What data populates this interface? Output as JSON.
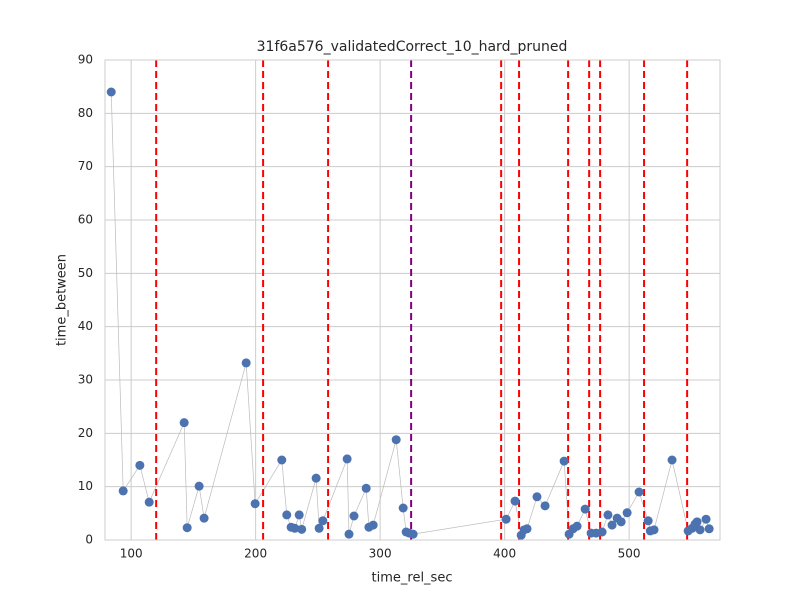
{
  "chart_data": {
    "type": "scatter",
    "title": "31f6a576_validatedCorrect_10_hard_pruned",
    "x_label": "time_rel_sec",
    "y_label": "time_between",
    "color": "#4c72b0",
    "line_color": "#bbbbbb",
    "grid": true,
    "x": [
      84,
      93.6,
      107,
      114.5,
      142.6,
      145,
      154.6,
      158.6,
      192.4,
      199.6,
      221,
      225,
      228.5,
      231.5,
      235,
      237,
      248.6,
      251,
      254,
      273.5,
      275,
      279,
      288.8,
      291,
      294.4,
      312.9,
      318.5,
      320.9,
      323.3,
      326.5,
      401.2,
      408.4,
      413.3,
      415.7,
      418,
      426,
      432.5,
      447.8,
      451.8,
      455,
      458.2,
      464.7,
      469.5,
      473.5,
      478.3,
      483,
      486.3,
      490.4,
      493.6,
      498.4,
      508,
      515.3,
      517,
      520,
      534.5,
      547.4,
      550.6,
      553,
      554.6,
      557,
      561.8,
      564.3
    ],
    "values": [
      84,
      9.2,
      14,
      7.1,
      22,
      2.3,
      10.1,
      4.1,
      33.2,
      6.8,
      15,
      4.7,
      2.4,
      2.2,
      4.7,
      2,
      11.6,
      2.2,
      3.6,
      15.2,
      1.1,
      4.5,
      9.7,
      2.4,
      2.8,
      18.8,
      6,
      1.5,
      1.3,
      1.1,
      3.9,
      7.3,
      0.9,
      1.9,
      2.1,
      8.1,
      6.4,
      14.8,
      1.1,
      2.1,
      2.6,
      5.8,
      1.3,
      1.3,
      1.5,
      4.7,
      2.8,
      4.1,
      3.4,
      5.1,
      9,
      3.6,
      1.7,
      1.9,
      15,
      1.7,
      2.2,
      3,
      3.4,
      1.9,
      3.9,
      2.1
    ],
    "vlines": [
      {
        "x": 120.1,
        "color": "#ff0000"
      },
      {
        "x": 206,
        "color": "#ff0000"
      },
      {
        "x": 258.2,
        "color": "#ff0000"
      },
      {
        "x": 324.9,
        "color": "#800080"
      },
      {
        "x": 397.2,
        "color": "#ff0000"
      },
      {
        "x": 411.6,
        "color": "#ff0000"
      },
      {
        "x": 451,
        "color": "#ff0000"
      },
      {
        "x": 467.9,
        "color": "#ff0000"
      },
      {
        "x": 476.7,
        "color": "#ff0000"
      },
      {
        "x": 512,
        "color": "#ff0000"
      },
      {
        "x": 546.6,
        "color": "#ff0000"
      }
    ],
    "xlim": [
      79,
      573
    ],
    "xticks": [
      100,
      200,
      300,
      400,
      500
    ],
    "ylim": [
      0,
      90
    ],
    "yticks": [
      0,
      10,
      20,
      30,
      40,
      50,
      60,
      70,
      80,
      90
    ]
  }
}
